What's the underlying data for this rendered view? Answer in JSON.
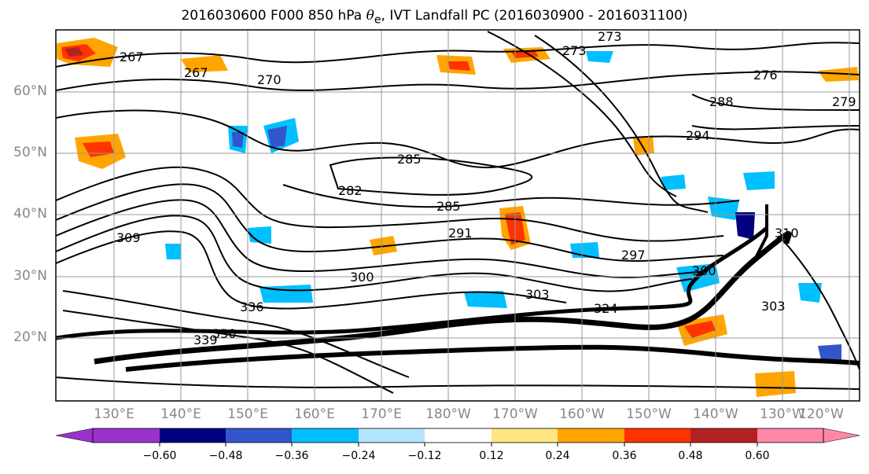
{
  "title": {
    "prefix": "2016030600 F000 850 hPa ",
    "symbol": "θ",
    "sub": "e",
    "suffix": ", IVT Landfall PC (2016030900 - 2016031100)"
  },
  "lat_labels": [
    "60°N",
    "50°N",
    "40°N",
    "30°N",
    "20°N"
  ],
  "lon_labels": [
    "130°E",
    "140°E",
    "150°E",
    "160°E",
    "170°E",
    "180°W",
    "170°W",
    "160°W",
    "150°W",
    "140°W",
    "130°W",
    "120°W"
  ],
  "contour_labels": [
    "267",
    "267",
    "270",
    "273",
    "273",
    "276",
    "279",
    "282",
    "285",
    "285",
    "288",
    "291",
    "294",
    "297",
    "300",
    "300",
    "303",
    "303",
    "309",
    "310",
    "324",
    "330",
    "336",
    "339"
  ],
  "colorbar": {
    "colors": [
      "#9933cc",
      "#000080",
      "#3355cc",
      "#00bfff",
      "#b3e5ff",
      "#ffffff",
      "#ffe680",
      "#ffa500",
      "#ff3300",
      "#b22222",
      "#ff88aa"
    ],
    "ticks": [
      "−0.60",
      "−0.48",
      "−0.36",
      "−0.24",
      "−0.12",
      "0.12",
      "0.24",
      "0.36",
      "0.48",
      "0.60"
    ]
  }
}
